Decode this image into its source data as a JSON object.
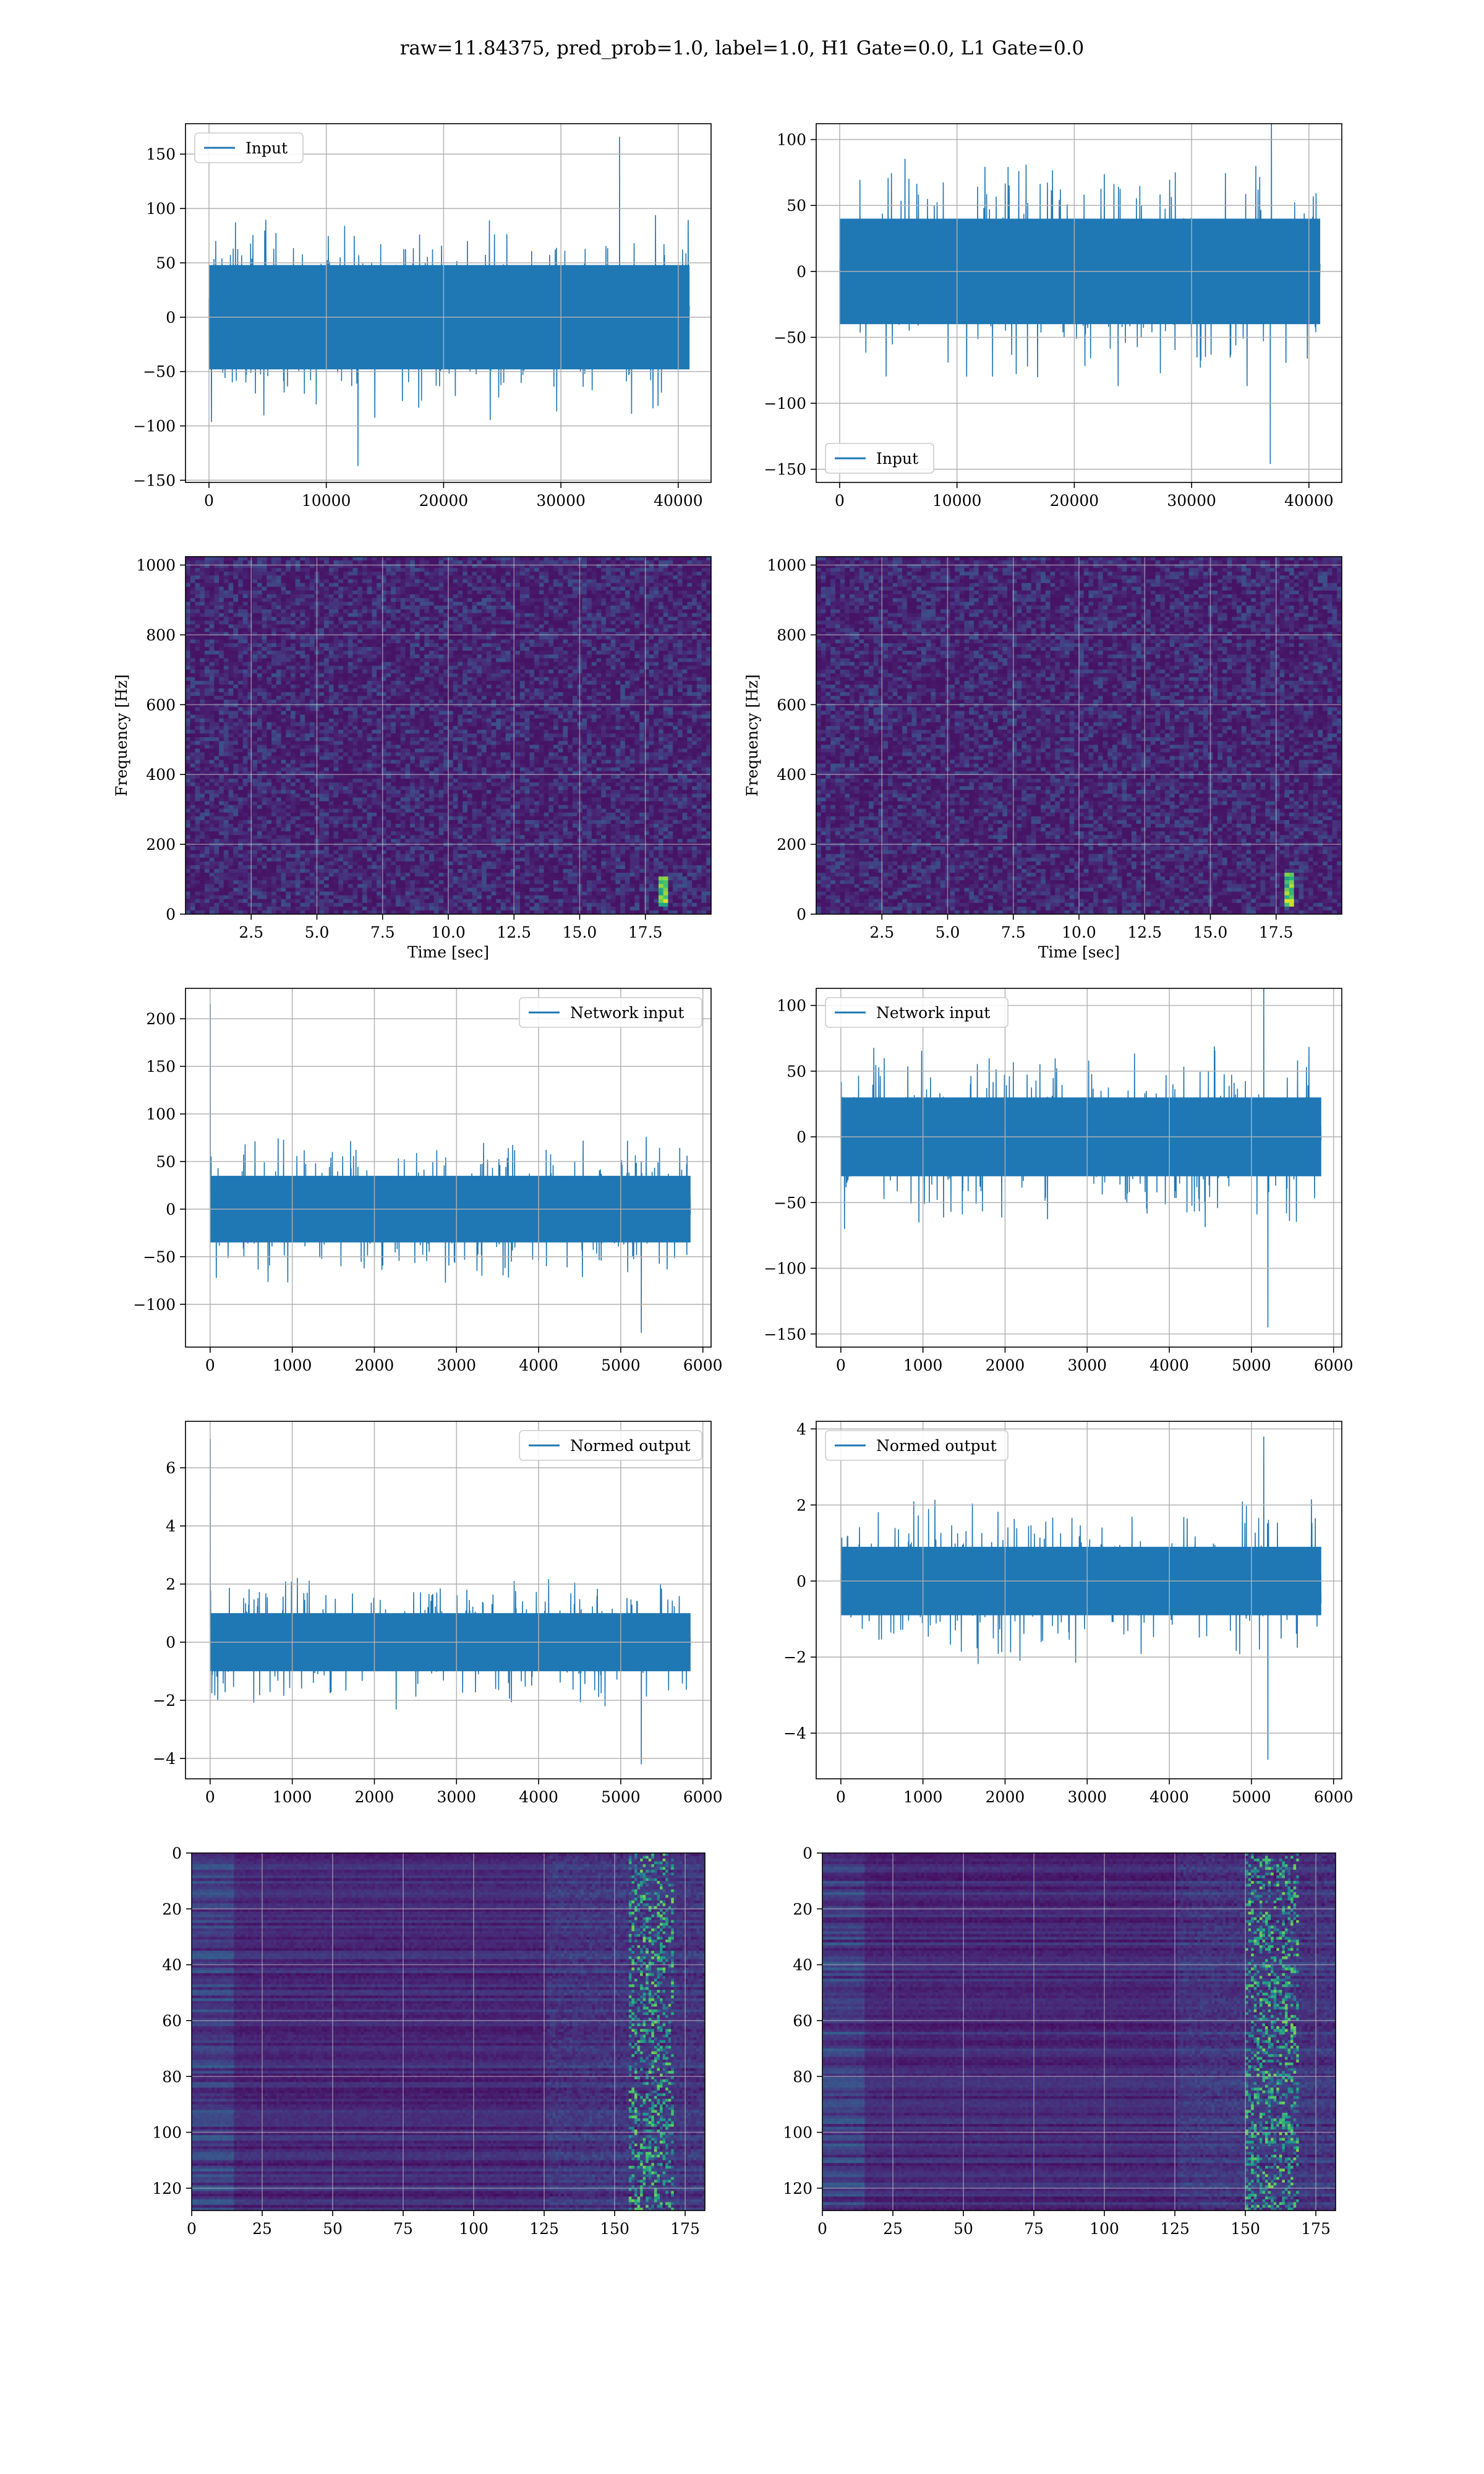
{
  "figure": {
    "suptitle": "raw=11.84375, pred_prob=1.0, label=1.0, H1 Gate=0.0, L1 Gate=0.0",
    "line_color": "#1f77b4"
  },
  "chart_data": [
    {
      "id": "input-h1",
      "type": "line",
      "series": [
        {
          "name": "Input",
          "color": "#1f77b4"
        }
      ],
      "legend": "upper left",
      "xlim": [
        -2000,
        42800
      ],
      "ylim": [
        -152,
        178
      ],
      "xticks": [
        0,
        10000,
        20000,
        30000,
        40000
      ],
      "yticks": [
        -150,
        -100,
        -50,
        0,
        50,
        100,
        150
      ],
      "grid": true,
      "signal": {
        "n": 40960,
        "core_amplitude": 48,
        "typical_peak": 95,
        "max": 166,
        "min": -137,
        "max_at": 35000,
        "min_at": 12700
      }
    },
    {
      "id": "input-l1",
      "type": "line",
      "series": [
        {
          "name": "Input",
          "color": "#1f77b4"
        }
      ],
      "legend": "lower left",
      "xlim": [
        -2000,
        42800
      ],
      "ylim": [
        -160,
        112
      ],
      "xticks": [
        0,
        10000,
        20000,
        30000,
        40000
      ],
      "yticks": [
        -150,
        -100,
        -50,
        0,
        50,
        100
      ],
      "grid": true,
      "signal": {
        "n": 40960,
        "core_amplitude": 40,
        "typical_peak": 90,
        "max": 118,
        "min": -146,
        "max_at": 36800,
        "min_at": 36700
      }
    },
    {
      "id": "spec-h1",
      "type": "heatmap",
      "colormap": "viridis",
      "xlabel": "Time [sec]",
      "ylabel": "Frequency [Hz]",
      "xlim": [
        0,
        20
      ],
      "ylim": [
        0,
        1024
      ],
      "xticks": [
        "2.5",
        "5.0",
        "7.5",
        "10.0",
        "12.5",
        "15.0",
        "17.5"
      ],
      "yticks": [
        0,
        200,
        400,
        600,
        800,
        1000
      ],
      "grid": true,
      "bright_features": [
        {
          "time": 18.2,
          "freq_low": 20,
          "freq_high": 110
        }
      ]
    },
    {
      "id": "spec-l1",
      "type": "heatmap",
      "colormap": "viridis",
      "xlabel": "Time [sec]",
      "ylabel": "Frequency [Hz]",
      "xlim": [
        0,
        20
      ],
      "ylim": [
        0,
        1024
      ],
      "xticks": [
        "2.5",
        "5.0",
        "7.5",
        "10.0",
        "12.5",
        "15.0",
        "17.5"
      ],
      "yticks": [
        0,
        200,
        400,
        600,
        800,
        1000
      ],
      "grid": true,
      "bright_features": [
        {
          "time": 18.0,
          "freq_low": 20,
          "freq_high": 120
        }
      ]
    },
    {
      "id": "netin-h1",
      "type": "line",
      "series": [
        {
          "name": "Network input",
          "color": "#1f77b4"
        }
      ],
      "legend": "upper right",
      "xlim": [
        -300,
        6100
      ],
      "ylim": [
        -145,
        232
      ],
      "xticks": [
        0,
        1000,
        2000,
        3000,
        4000,
        5000,
        6000
      ],
      "yticks": [
        -100,
        -50,
        0,
        50,
        100,
        150,
        200
      ],
      "grid": true,
      "signal": {
        "n": 5850,
        "core_amplitude": 35,
        "typical_peak": 80,
        "max": 216,
        "min": -130,
        "max_at": 2,
        "min_at": 5250
      }
    },
    {
      "id": "netin-l1",
      "type": "line",
      "series": [
        {
          "name": "Network input",
          "color": "#1f77b4"
        }
      ],
      "legend": "upper left",
      "xlim": [
        -300,
        6100
      ],
      "ylim": [
        -160,
        113
      ],
      "xticks": [
        0,
        1000,
        2000,
        3000,
        4000,
        5000,
        6000
      ],
      "yticks": [
        -150,
        -100,
        -50,
        0,
        50,
        100
      ],
      "grid": true,
      "signal": {
        "n": 5850,
        "core_amplitude": 30,
        "typical_peak": 70,
        "max": 118,
        "min": -145,
        "max_at": 5150,
        "min_at": 5200
      }
    },
    {
      "id": "normed-h1",
      "type": "line",
      "series": [
        {
          "name": "Normed output",
          "color": "#1f77b4"
        }
      ],
      "legend": "upper right",
      "xlim": [
        -300,
        6100
      ],
      "ylim": [
        -4.7,
        7.6
      ],
      "xticks": [
        0,
        1000,
        2000,
        3000,
        4000,
        5000,
        6000
      ],
      "yticks": [
        -4,
        -2,
        0,
        2,
        4,
        6
      ],
      "grid": true,
      "signal": {
        "n": 5850,
        "core_amplitude": 1.0,
        "typical_peak": 2.3,
        "max": 7.0,
        "min": -4.2,
        "max_at": 2,
        "min_at": 5250
      }
    },
    {
      "id": "normed-l1",
      "type": "line",
      "series": [
        {
          "name": "Normed output",
          "color": "#1f77b4"
        }
      ],
      "legend": "upper left",
      "xlim": [
        -300,
        6100
      ],
      "ylim": [
        -5.2,
        4.2
      ],
      "xticks": [
        0,
        1000,
        2000,
        3000,
        4000,
        5000,
        6000
      ],
      "yticks": [
        -4,
        -2,
        0,
        2,
        4
      ],
      "grid": true,
      "signal": {
        "n": 5850,
        "core_amplitude": 0.9,
        "typical_peak": 2.2,
        "max": 3.8,
        "min": -4.7,
        "max_at": 5150,
        "min_at": 5200
      }
    },
    {
      "id": "features-h1",
      "type": "heatmap",
      "colormap": "viridis",
      "xlim": [
        0,
        182
      ],
      "ylim": [
        128,
        0
      ],
      "xticks": [
        0,
        25,
        50,
        75,
        100,
        125,
        150,
        175
      ],
      "yticks": [
        0,
        20,
        40,
        60,
        80,
        100,
        120
      ],
      "grid": true,
      "bright_columns": [
        155,
        170
      ]
    },
    {
      "id": "features-l1",
      "type": "heatmap",
      "colormap": "viridis",
      "xlim": [
        0,
        182
      ],
      "ylim": [
        128,
        0
      ],
      "xticks": [
        0,
        25,
        50,
        75,
        100,
        125,
        150,
        175
      ],
      "yticks": [
        0,
        20,
        40,
        60,
        80,
        100,
        120
      ],
      "grid": true,
      "bright_columns": [
        150,
        168
      ]
    }
  ]
}
